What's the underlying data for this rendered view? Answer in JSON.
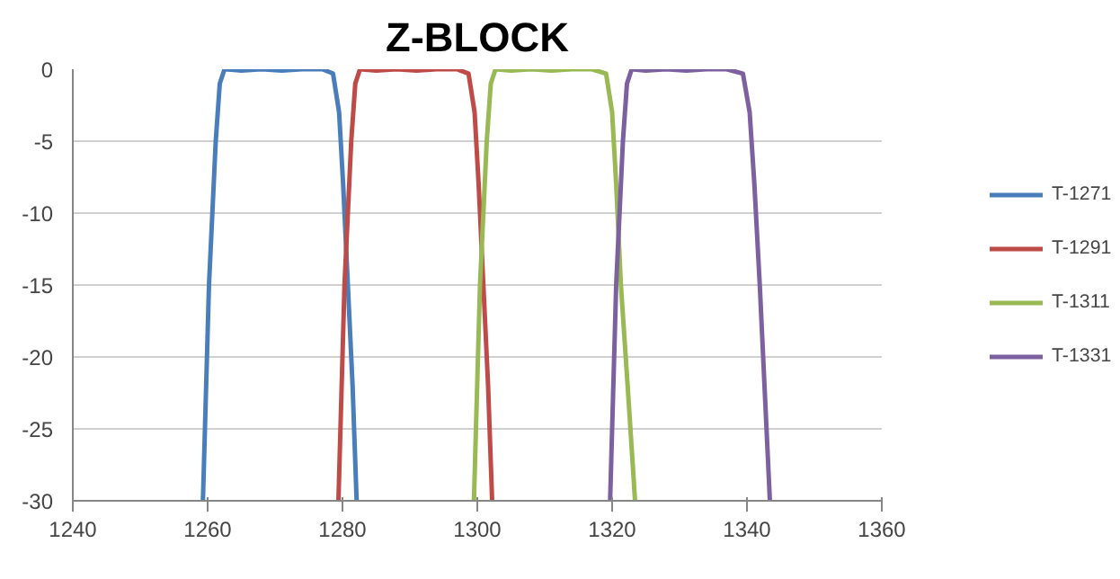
{
  "chart_data": {
    "type": "line",
    "title": "Z-BLOCK",
    "xlim": [
      1240,
      1360
    ],
    "xticks": [
      1240,
      1260,
      1280,
      1300,
      1320,
      1340,
      1360
    ],
    "ylim": [
      -30,
      0
    ],
    "yticks": [
      -30,
      -25,
      -20,
      -15,
      -10,
      -5,
      0
    ],
    "grid": "y",
    "legend": "right",
    "marker": "none",
    "line_style": "solid",
    "series": [
      {
        "name": "T-1271",
        "color": "#4a7ebb",
        "x": [
          1259.3,
          1260.2,
          1261.2,
          1261.8,
          1262.5,
          1265,
          1268,
          1271,
          1274,
          1277,
          1278.6,
          1279.5,
          1280.1,
          1280.8,
          1281.5,
          1282.1
        ],
        "values": [
          -30,
          -15,
          -5,
          -1,
          0,
          -0.1,
          0,
          -0.1,
          0,
          0,
          -0.3,
          -3,
          -8,
          -15,
          -22,
          -30
        ]
      },
      {
        "name": "T-1291",
        "color": "#be4b48",
        "x": [
          1279.4,
          1280.3,
          1281.3,
          1281.9,
          1282.6,
          1285,
          1288,
          1291,
          1294,
          1297,
          1298.7,
          1299.6,
          1300.2,
          1300.9,
          1301.6,
          1302.2
        ],
        "values": [
          -30,
          -15,
          -5,
          -1,
          0,
          -0.1,
          0,
          -0.1,
          0,
          0,
          -0.3,
          -3,
          -8,
          -15,
          -22,
          -30
        ]
      },
      {
        "name": "T-1311",
        "color": "#98b954",
        "x": [
          1299.5,
          1300.4,
          1301.4,
          1302,
          1302.7,
          1305,
          1308,
          1311,
          1314,
          1317,
          1319.1,
          1320,
          1320.6,
          1321.3,
          1322.3,
          1323.4
        ],
        "values": [
          -30,
          -15,
          -5,
          -1,
          0,
          -0.1,
          0,
          -0.1,
          0,
          0,
          -0.3,
          -3,
          -8,
          -15,
          -22,
          -30
        ]
      },
      {
        "name": "T-1331",
        "color": "#7d60a0",
        "x": [
          1319.7,
          1320.6,
          1321.6,
          1322.2,
          1322.9,
          1325,
          1328,
          1331,
          1334,
          1337,
          1339.4,
          1340.4,
          1341.1,
          1341.9,
          1342.6,
          1343.4
        ],
        "values": [
          -30,
          -15,
          -5,
          -1,
          0,
          -0.1,
          0,
          -0.1,
          0,
          0,
          -0.3,
          -3,
          -8,
          -15,
          -22,
          -30
        ]
      }
    ]
  }
}
